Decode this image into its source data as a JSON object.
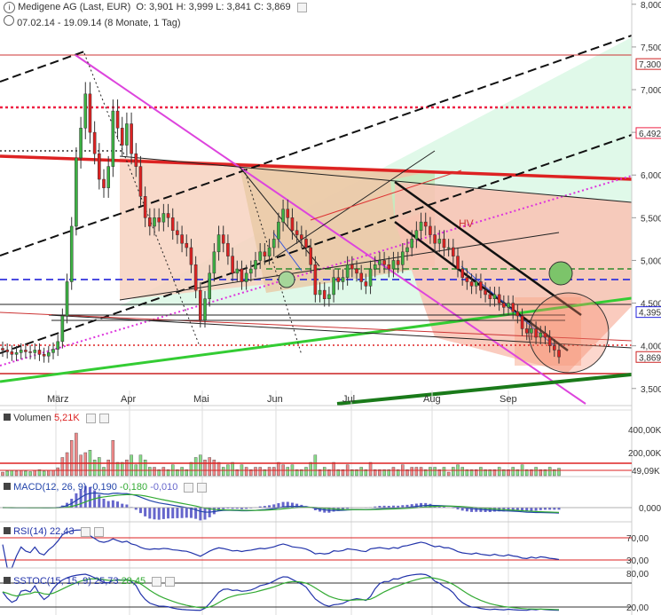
{
  "header": {
    "title": "Medigene AG (Last, EUR)",
    "ohlc": "O: 3,901  H: 3,999  L: 3,841  C: 3,869",
    "range": "07.02.14 - 19.09.14 (8 Monate, 1 Tag)"
  },
  "chart_data": {
    "type": "candlestick",
    "instrument": "Medigene AG (Last, EUR)",
    "period": "07.02.14 - 19.09.14",
    "x_labels": [
      "März",
      "Apr",
      "Mai",
      "Jun",
      "Jul",
      "Aug",
      "Sep"
    ],
    "y_ticks": [
      "8,000",
      "7,500",
      "7,000",
      "6,500",
      "6,000",
      "5,500",
      "5,000",
      "4,500",
      "4,000",
      "3,500"
    ],
    "price_tags": [
      {
        "label": "7,300",
        "value": 7.3,
        "color": "#cc2222"
      },
      {
        "label": "6,492",
        "value": 6.492,
        "color": "#ee2244"
      },
      {
        "label": "4,395",
        "value": 4.395,
        "color": "#2222dd"
      },
      {
        "label": "3,869",
        "value": 3.869,
        "color": "#cc2222"
      }
    ],
    "ylim": [
      3.3,
      8.05
    ],
    "last_close": 3.869,
    "closes": [
      3.95,
      3.93,
      3.9,
      3.92,
      3.95,
      3.93,
      3.92,
      3.95,
      3.9,
      3.88,
      3.92,
      3.96,
      4.05,
      4.35,
      4.75,
      5.4,
      6.2,
      6.55,
      6.95,
      6.5,
      6.25,
      5.95,
      5.85,
      6.1,
      6.75,
      6.55,
      6.35,
      6.6,
      6.25,
      6.1,
      5.75,
      5.5,
      5.4,
      5.5,
      5.45,
      5.55,
      5.5,
      5.35,
      5.3,
      5.2,
      5.15,
      4.95,
      4.65,
      4.3,
      4.55,
      4.85,
      5.1,
      5.3,
      5.2,
      5.05,
      4.85,
      4.9,
      4.75,
      4.85,
      4.9,
      5.0,
      5.1,
      5.05,
      5.15,
      5.25,
      5.45,
      5.6,
      5.5,
      5.35,
      5.3,
      5.25,
      5.15,
      4.95,
      4.6,
      4.65,
      4.55,
      4.6,
      4.8,
      4.75,
      4.8,
      4.95,
      4.9,
      4.85,
      4.75,
      4.7,
      4.9,
      4.95,
      5.0,
      4.95,
      4.9,
      5.0,
      4.95,
      5.1,
      5.15,
      5.25,
      5.35,
      5.45,
      5.4,
      5.3,
      5.2,
      5.25,
      5.15,
      5.15,
      5.05,
      4.9,
      4.8,
      4.75,
      4.7,
      4.75,
      4.65,
      4.6,
      4.55,
      4.6,
      4.5,
      4.45,
      4.5,
      4.4,
      4.35,
      4.2,
      4.15,
      4.2,
      4.1,
      4.15,
      4.1,
      4.0,
      3.95,
      3.87
    ],
    "moving_average_color": "#44cc44"
  },
  "volume_panel": {
    "title": "Volumen",
    "value": "5,21K",
    "ticks": [
      "400,00K",
      "200,00K",
      "49,09K"
    ]
  },
  "macd_panel": {
    "title": "MACD(12, 26, 9)",
    "v1": "-0,190",
    "v2": "-0,180",
    "v3": "-0,010",
    "ticks": [
      "0,000"
    ]
  },
  "rsi_panel": {
    "title": "RSI(14)",
    "value": "22,43",
    "ticks": [
      "70,00",
      "30,00"
    ]
  },
  "sstoc_panel": {
    "title": "SSTOC(15, 15, 9)",
    "v1": "25,73",
    "v2": "28,45",
    "ticks": [
      "80,00",
      "20,00"
    ]
  },
  "annotation": {
    "text": "HV"
  },
  "colors": {
    "up": "#3cb043",
    "down": "#dd2222",
    "axis": "#cccccc"
  }
}
